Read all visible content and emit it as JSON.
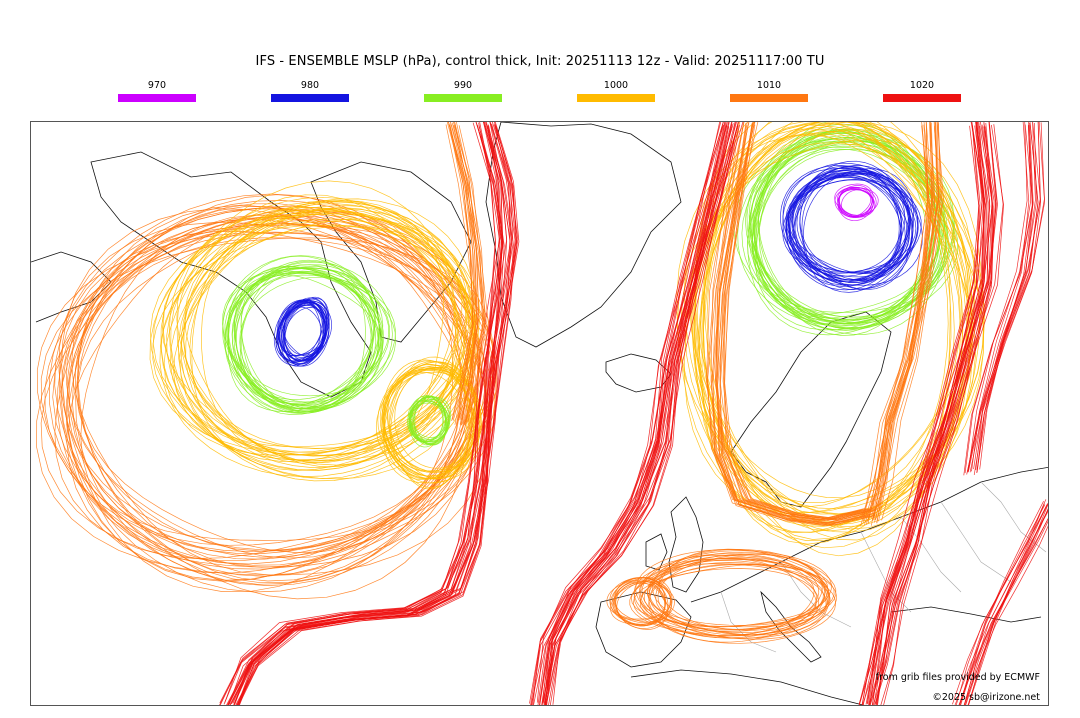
{
  "title": "IFS - ENSEMBLE MSLP (hPa), control thick, Init: 20251113 12z - Valid: 20251117:00 TU",
  "legend": [
    {
      "label": "970",
      "color": "#cc00ff"
    },
    {
      "label": "980",
      "color": "#1414e0"
    },
    {
      "label": "990",
      "color": "#88ee22"
    },
    {
      "label": "1000",
      "color": "#ffbb00"
    },
    {
      "label": "1010",
      "color": "#ff7711"
    },
    {
      "label": "1020",
      "color": "#ee1111"
    }
  ],
  "credits": {
    "source": "from grib files provided by ECMWF",
    "copyright": "©2025 sb@irizone.net"
  },
  "features": {
    "left_low_center": "990-980 low over Hudson Bay region",
    "secondary_low": "990 low south of Greenland",
    "right_low_center": "970-980 low over Norwegian Sea / Scandinavia"
  }
}
